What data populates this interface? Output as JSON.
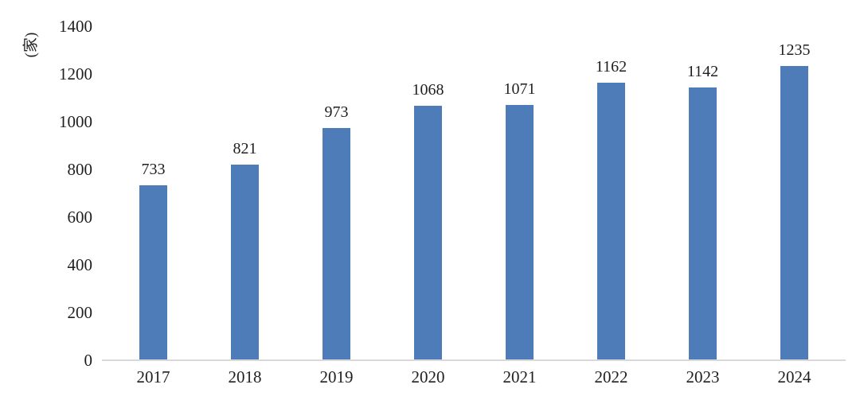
{
  "chart_data": {
    "type": "bar",
    "title": "",
    "ylabel": "(家)",
    "xlabel": "",
    "categories": [
      "2017",
      "2018",
      "2019",
      "2020",
      "2021",
      "2022",
      "2023",
      "2024"
    ],
    "values": [
      733,
      821,
      973,
      1068,
      1071,
      1162,
      1142,
      1235
    ],
    "yticks": [
      0,
      200,
      400,
      600,
      800,
      1000,
      1200,
      1400
    ],
    "ylim": [
      0,
      1400
    ],
    "grid": false,
    "legend_position": "none",
    "data_labels": true,
    "colors": {
      "bar": "#4d7cb8",
      "axis_line": "#d9d9d9",
      "text": "#1f1f1f",
      "background": "#ffffff"
    }
  }
}
